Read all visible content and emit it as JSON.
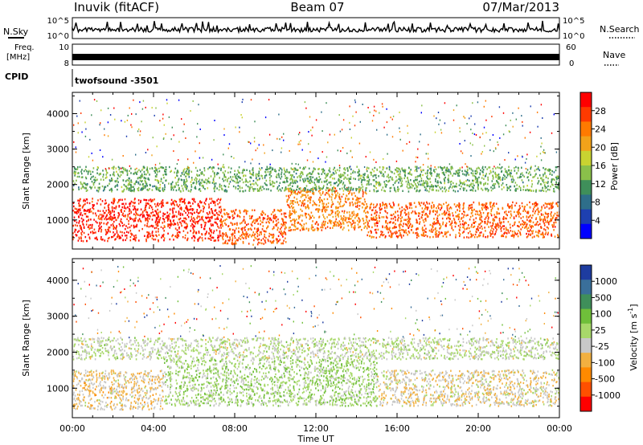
{
  "header": {
    "station": "Inuvik (fitACF)",
    "beam": "Beam 07",
    "date": "07/Mar/2013"
  },
  "top_panels": {
    "nsky_label": "N.Sky",
    "nsearch_label": "N.Search",
    "noise_ticks": [
      "10^5",
      "10^0"
    ],
    "freq_label_line1": "Freq.",
    "freq_label_line2": "[MHz]",
    "freq_ticks": [
      "10",
      "8"
    ],
    "nave_label": "Nave",
    "nave_ticks": [
      "60",
      "0"
    ],
    "cpid_label": "CPID",
    "cpid_value": "twofsound -3501"
  },
  "colorbars": {
    "power": {
      "label": "Power [dB]",
      "ticks": [
        "28",
        "24",
        "20",
        "16",
        "12",
        "8",
        "4"
      ],
      "colors": [
        "#ff0000",
        "#ff3a00",
        "#ff7a00",
        "#f2a21a",
        "#c9d331",
        "#8ac04a",
        "#3f8f5a",
        "#2e6e8a",
        "#1e40b0",
        "#0000ff"
      ]
    },
    "velocity": {
      "label": "Velocity [m s^-1]",
      "ticks": [
        "1000",
        "500",
        "100",
        "25",
        "-25",
        "-100",
        "-500",
        "-1000"
      ],
      "colors": [
        "#1e3ca0",
        "#3a6f9a",
        "#3f8f5a",
        "#6fbf3a",
        "#a8d86a",
        "#c8c8c8",
        "#f2b040",
        "#ff8a00",
        "#ff5000",
        "#ff0000"
      ]
    }
  },
  "axes": {
    "ylabel": "Slant Range [km]",
    "xlabel": "Time UT",
    "x_ticks": [
      "00:00",
      "04:00",
      "08:00",
      "12:00",
      "16:00",
      "20:00",
      "00:00"
    ],
    "y_ticks": [
      "1000",
      "2000",
      "3000",
      "4000"
    ]
  },
  "chart_data": [
    {
      "type": "heatmap",
      "title": "Power",
      "xlabel": "Time UT",
      "ylabel": "Slant Range [km]",
      "xlim": [
        0,
        24
      ],
      "ylim": [
        180,
        4600
      ],
      "colorbar": "Power [dB]",
      "clim": [
        0,
        30
      ],
      "scatter_bands": [
        {
          "t_start": 0,
          "t_end": 7.3,
          "range_start": 400,
          "range_end": 1600,
          "value": 27
        },
        {
          "t_start": 7.3,
          "t_end": 10.5,
          "range_start": 300,
          "range_end": 1300,
          "value": 24
        },
        {
          "t_start": 10.5,
          "t_end": 14.5,
          "range_start": 700,
          "range_end": 1900,
          "value": 22
        },
        {
          "t_start": 14.5,
          "t_end": 24,
          "range_start": 500,
          "range_end": 1500,
          "value": 24
        },
        {
          "t_start": 0,
          "t_end": 24,
          "range_start": 1800,
          "range_end": 2500,
          "value": 12
        }
      ]
    },
    {
      "type": "heatmap",
      "title": "Velocity",
      "xlabel": "Time UT",
      "ylabel": "Slant Range [km]",
      "xlim": [
        0,
        24
      ],
      "ylim": [
        180,
        4600
      ],
      "colorbar": "Velocity [m s^-1]",
      "clim": [
        -1000,
        1000
      ],
      "scatter_bands": [
        {
          "t_start": 0,
          "t_end": 4.5,
          "range_start": 400,
          "range_end": 1500,
          "value": -200
        },
        {
          "t_start": 4.5,
          "t_end": 15,
          "range_start": 500,
          "range_end": 1800,
          "value": 120
        },
        {
          "t_start": 15,
          "t_end": 24,
          "range_start": 500,
          "range_end": 1500,
          "value": -150
        },
        {
          "t_start": 0,
          "t_end": 24,
          "range_start": 1800,
          "range_end": 2400,
          "value": 0
        }
      ]
    }
  ]
}
